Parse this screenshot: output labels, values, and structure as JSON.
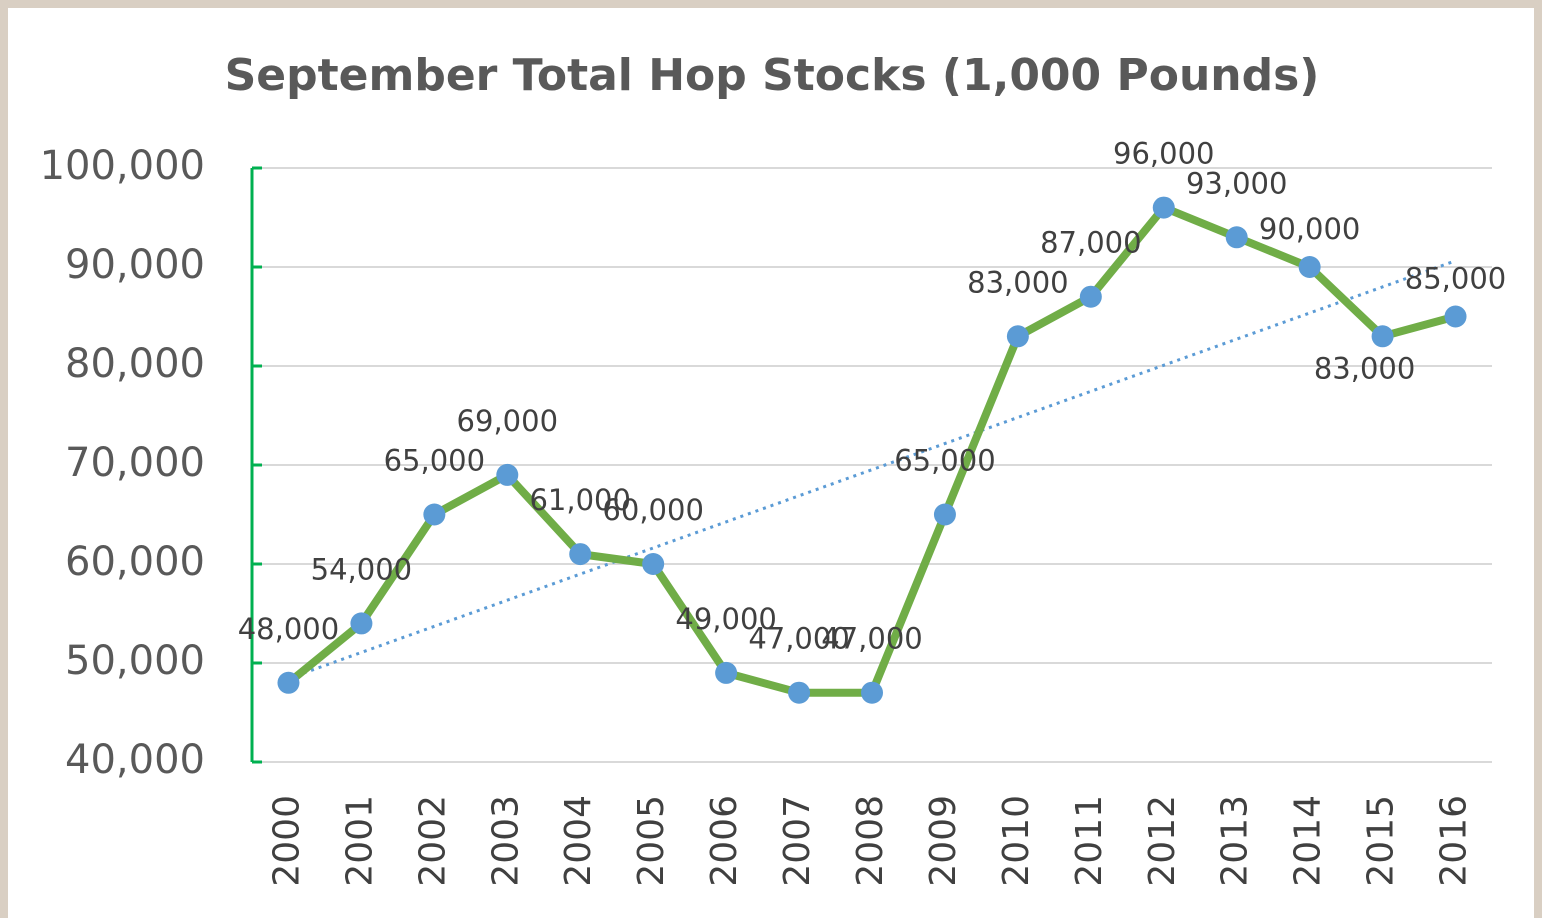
{
  "chart_data": {
    "type": "line",
    "title": "September Total Hop Stocks (1,000 Pounds)",
    "categories": [
      "2000",
      "2001",
      "2002",
      "2003",
      "2004",
      "2005",
      "2006",
      "2007",
      "2008",
      "2009",
      "2010",
      "2011",
      "2012",
      "2013",
      "2014",
      "2015",
      "2016"
    ],
    "series": [
      {
        "name": "Hop Stocks",
        "color": "#70ad47",
        "marker_color": "#5b9bd5",
        "values": [
          48000,
          54000,
          65000,
          69000,
          61000,
          60000,
          49000,
          47000,
          47000,
          65000,
          83000,
          87000,
          96000,
          93000,
          90000,
          83000,
          85000
        ],
        "value_labels": [
          "48,000",
          "54,000",
          "65,000",
          "69,000",
          "61,000",
          "60,000",
          "49,000",
          "47,000",
          "47,000",
          "65,000",
          "83,000",
          "87,000",
          "96,000",
          "93,000",
          "90,000",
          "83,000",
          "85,000"
        ]
      }
    ],
    "trendline": {
      "kind": "linear",
      "color": "#5b9bd5"
    },
    "ylim": [
      40000,
      100000
    ],
    "yticks": [
      {
        "value": 40000,
        "label": "40,000"
      },
      {
        "value": 50000,
        "label": "50,000"
      },
      {
        "value": 60000,
        "label": "60,000"
      },
      {
        "value": 70000,
        "label": "70,000"
      },
      {
        "value": 80000,
        "label": "80,000"
      },
      {
        "value": 90000,
        "label": "90,000"
      },
      {
        "value": 100000,
        "label": "100,000"
      }
    ],
    "grid": true,
    "axis_color": "#00b050"
  }
}
